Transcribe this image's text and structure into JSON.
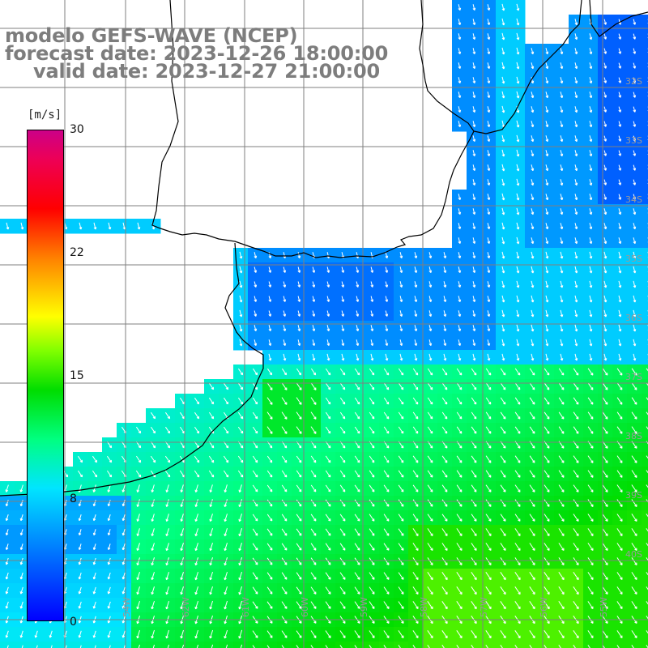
{
  "title": {
    "line1": "modelo GEFS-WAVE (NCEP)",
    "line2": "forecast date: 2023-12-26 18:00:00",
    "line3": "valid date: 2023-12-27 21:00:00"
  },
  "colorbar": {
    "unit": "[m/s]",
    "ticks": [
      "30",
      "22",
      "15",
      "8",
      "0"
    ],
    "tick_values": [
      30,
      22,
      15,
      8,
      0
    ]
  },
  "map_labels": {
    "latitudes": [
      "32S",
      "33S",
      "34S",
      "35S",
      "36S",
      "37S",
      "38S",
      "39S",
      "40S"
    ],
    "longitudes": [
      "62W",
      "61W",
      "60W",
      "59W",
      "58W",
      "57W",
      "56W",
      "55W",
      "54W"
    ]
  },
  "colors": {
    "grid": "#7f7f7f",
    "coast": "#000000",
    "title": "#7d7d7d",
    "arrow": "#ffffff"
  }
}
